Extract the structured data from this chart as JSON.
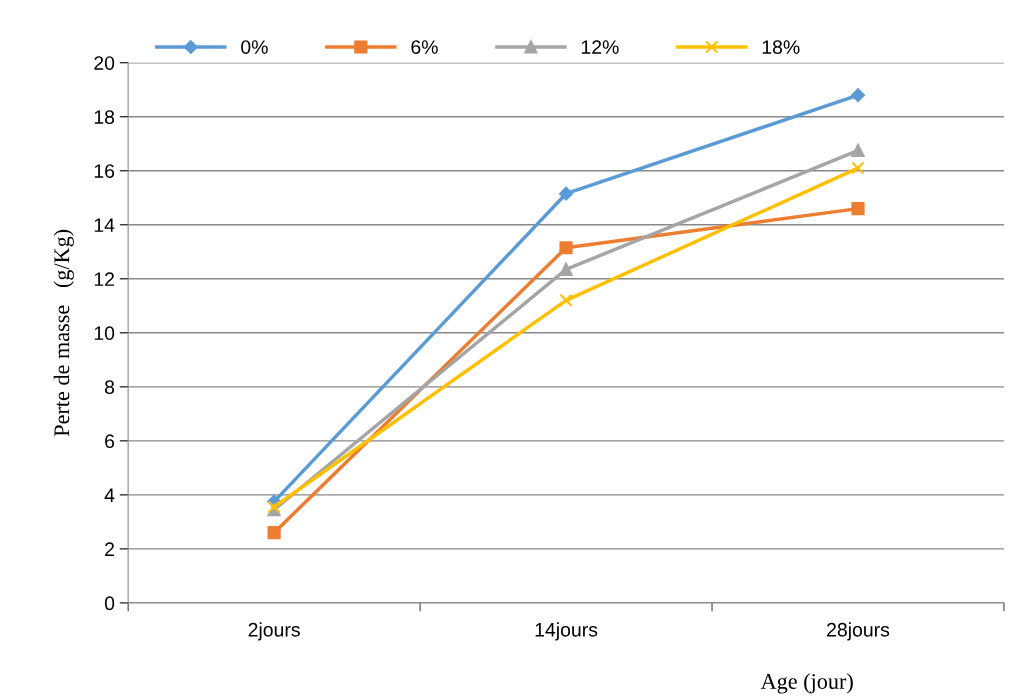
{
  "chart_data": {
    "type": "line",
    "xlabel": "Age (jour)",
    "ylabel": "Perte de masse   (g/Kg)",
    "categories": [
      "2jours",
      "14jours",
      "28jours"
    ],
    "series": [
      {
        "name": "0%",
        "color": "#5b9bd5",
        "marker": "diamond",
        "values": [
          3.75,
          15.15,
          18.8
        ]
      },
      {
        "name": "6%",
        "color": "#ed7d31",
        "marker": "square",
        "values": [
          2.6,
          13.15,
          14.6
        ]
      },
      {
        "name": "12%",
        "color": "#a5a5a5",
        "marker": "triangle",
        "values": [
          3.45,
          12.35,
          16.75
        ]
      },
      {
        "name": "18%",
        "color": "#ffc000",
        "marker": "cross",
        "values": [
          3.55,
          11.2,
          16.1
        ]
      }
    ],
    "ylim": [
      0,
      20
    ],
    "yticks": [
      0,
      2,
      4,
      6,
      8,
      10,
      12,
      14,
      16,
      18,
      20
    ],
    "grid": "y",
    "legend": "top",
    "line_style": "solid"
  }
}
